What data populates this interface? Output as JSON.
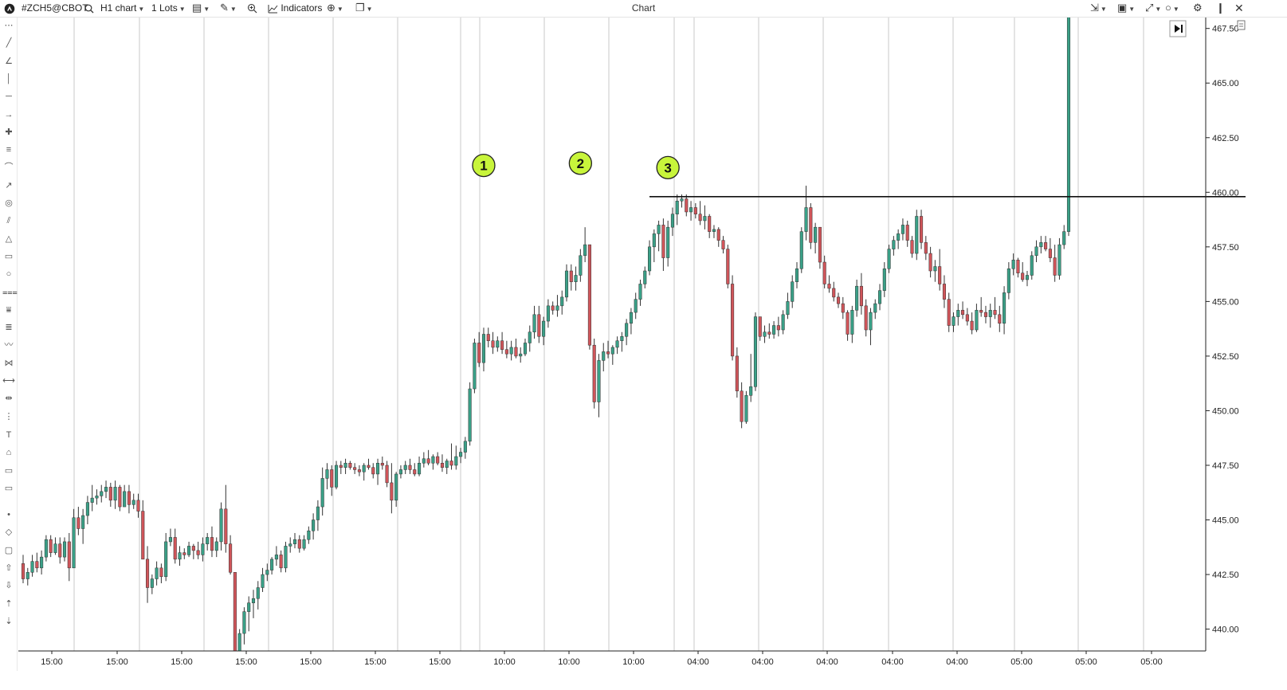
{
  "toolbar": {
    "logo_icon": "app-logo-icon",
    "symbol": "#ZCH5@CBOT",
    "timeframe": "H1 chart",
    "lots": "1 Lots",
    "indicators": "Indicators",
    "title": "Chart"
  },
  "left_tools": [
    "dots-icon",
    "trendline-icon",
    "angle-icon",
    "vertical-line-icon",
    "horizontal-line-icon",
    "ray-icon",
    "crosshair-icon",
    "parallel-lines-icon",
    "curve-icon",
    "arrow-line-icon",
    "spiral-icon",
    "channel-icon",
    "triangle-icon",
    "rectangle-icon",
    "circle-icon",
    "fib-levels-icon",
    "fib-extension-icon",
    "fib-fan-icon",
    "wave-icon",
    "pattern-icon",
    "measure-icon",
    "range-icon",
    "vertical-dots-icon",
    "text-icon",
    "tag-icon",
    "callout-icon",
    "note-icon",
    "dot-icon",
    "diamond-icon",
    "square-icon",
    "arrow-up-icon",
    "arrow-down-icon",
    "sort-up-icon",
    "sort-down-icon"
  ],
  "chart_data": {
    "type": "candlestick",
    "y_ticks": [
      "467.50",
      "465.00",
      "462.50",
      "460.00",
      "457.50",
      "455.00",
      "452.50",
      "450.00",
      "447.50",
      "445.00",
      "442.50",
      "440.00"
    ],
    "x_ticks": [
      "15:00",
      "15:00",
      "15:00",
      "15:00",
      "15:00",
      "15:00",
      "15:00",
      "10:00",
      "10:00",
      "10:00",
      "04:00",
      "04:00",
      "04:00",
      "04:00",
      "04:00",
      "05:00",
      "05:00",
      "05:00"
    ],
    "ylim": [
      439.0,
      468.0
    ],
    "resistance_level": 459.8,
    "colors": {
      "up": "#3aa087",
      "down": "#d0555a",
      "wick": "#333333",
      "label_bg": "#c8f53b"
    },
    "markers": [
      {
        "label": "1",
        "x_index": 100,
        "price": 460.5
      },
      {
        "label": "2",
        "x_index": 121,
        "price": 460.6
      },
      {
        "label": "3",
        "x_index": 140,
        "price": 460.4
      }
    ],
    "ohlc": [
      [
        443.0,
        443.4,
        442.1,
        442.3
      ],
      [
        442.3,
        442.8,
        442.0,
        442.6
      ],
      [
        442.6,
        443.4,
        442.4,
        443.1
      ],
      [
        443.1,
        443.5,
        442.6,
        442.8
      ],
      [
        442.8,
        443.6,
        442.5,
        443.3
      ],
      [
        443.3,
        444.3,
        443.1,
        444.1
      ],
      [
        444.1,
        444.3,
        443.3,
        443.5
      ],
      [
        443.5,
        444.2,
        443.4,
        443.9
      ],
      [
        443.9,
        444.2,
        443.0,
        443.3
      ],
      [
        443.3,
        444.2,
        443.1,
        444.0
      ],
      [
        444.0,
        444.4,
        442.2,
        442.8
      ],
      [
        442.8,
        445.5,
        442.8,
        445.1
      ],
      [
        445.1,
        445.6,
        444.3,
        444.6
      ],
      [
        444.6,
        445.5,
        443.9,
        445.2
      ],
      [
        445.2,
        446.1,
        444.8,
        445.8
      ],
      [
        445.8,
        446.6,
        445.4,
        446.0
      ],
      [
        446.0,
        446.4,
        445.7,
        446.1
      ],
      [
        446.1,
        446.6,
        445.8,
        446.3
      ],
      [
        446.3,
        446.8,
        446.0,
        446.5
      ],
      [
        446.5,
        446.7,
        445.6,
        445.9
      ],
      [
        445.9,
        446.8,
        445.5,
        446.5
      ],
      [
        446.5,
        446.6,
        445.4,
        445.6
      ],
      [
        445.6,
        446.6,
        445.6,
        446.3
      ],
      [
        446.3,
        446.6,
        445.3,
        445.7
      ],
      [
        445.7,
        446.2,
        445.5,
        445.9
      ],
      [
        445.9,
        446.2,
        445.1,
        445.4
      ],
      [
        445.4,
        445.9,
        443.2,
        443.2
      ],
      [
        443.2,
        443.8,
        441.2,
        441.9
      ],
      [
        441.9,
        442.5,
        441.6,
        442.3
      ],
      [
        442.3,
        443.1,
        442.0,
        442.8
      ],
      [
        442.8,
        443.0,
        442.1,
        442.4
      ],
      [
        442.4,
        444.4,
        442.2,
        444.0
      ],
      [
        444.0,
        444.6,
        443.8,
        444.2
      ],
      [
        444.2,
        444.6,
        443.0,
        443.2
      ],
      [
        443.2,
        443.8,
        442.9,
        443.5
      ],
      [
        443.5,
        443.7,
        443.2,
        443.4
      ],
      [
        443.4,
        444.0,
        443.3,
        443.8
      ],
      [
        443.8,
        443.9,
        443.2,
        443.6
      ],
      [
        443.6,
        444.0,
        443.2,
        443.4
      ],
      [
        443.4,
        444.2,
        443.1,
        443.9
      ],
      [
        443.9,
        444.4,
        443.6,
        444.2
      ],
      [
        444.2,
        444.7,
        443.3,
        443.6
      ],
      [
        443.6,
        444.2,
        443.3,
        444.0
      ],
      [
        444.0,
        445.8,
        443.6,
        445.5
      ],
      [
        445.5,
        446.6,
        443.5,
        443.9
      ],
      [
        443.9,
        444.3,
        442.5,
        442.6
      ],
      [
        442.6,
        442.6,
        438.5,
        438.9
      ],
      [
        437.8,
        440.0,
        437.6,
        439.8
      ],
      [
        439.8,
        441.0,
        439.3,
        440.8
      ],
      [
        440.8,
        441.5,
        439.9,
        441.2
      ],
      [
        441.2,
        441.8,
        440.5,
        441.4
      ],
      [
        441.4,
        442.2,
        440.9,
        441.9
      ],
      [
        441.9,
        442.8,
        441.7,
        442.5
      ],
      [
        442.5,
        443.0,
        442.2,
        442.7
      ],
      [
        442.7,
        443.3,
        442.5,
        443.2
      ],
      [
        443.2,
        443.8,
        442.9,
        443.4
      ],
      [
        443.4,
        443.6,
        442.6,
        442.8
      ],
      [
        442.8,
        444.0,
        442.6,
        443.8
      ],
      [
        443.8,
        444.2,
        443.5,
        443.9
      ],
      [
        443.9,
        444.4,
        443.7,
        444.1
      ],
      [
        444.1,
        444.3,
        443.5,
        443.7
      ],
      [
        443.7,
        444.3,
        443.6,
        444.1
      ],
      [
        444.1,
        444.7,
        443.9,
        444.5
      ],
      [
        444.5,
        445.3,
        444.1,
        445.0
      ],
      [
        445.0,
        445.9,
        444.5,
        445.6
      ],
      [
        445.6,
        447.4,
        445.2,
        446.9
      ],
      [
        446.9,
        447.6,
        446.4,
        447.3
      ],
      [
        447.3,
        447.5,
        446.1,
        446.5
      ],
      [
        446.5,
        447.7,
        446.4,
        447.5
      ],
      [
        447.5,
        447.7,
        447.1,
        447.4
      ],
      [
        447.4,
        447.8,
        447.1,
        447.6
      ],
      [
        447.6,
        447.7,
        447.3,
        447.4
      ],
      [
        447.4,
        447.6,
        447.1,
        447.3
      ],
      [
        447.3,
        447.5,
        447.0,
        447.2
      ],
      [
        447.2,
        447.6,
        446.8,
        447.5
      ],
      [
        447.5,
        447.8,
        447.3,
        447.4
      ],
      [
        447.4,
        447.6,
        446.9,
        447.1
      ],
      [
        447.1,
        447.8,
        446.6,
        447.6
      ],
      [
        447.6,
        447.9,
        447.3,
        447.5
      ],
      [
        447.5,
        447.7,
        446.5,
        446.7
      ],
      [
        446.7,
        447.6,
        445.3,
        445.9
      ],
      [
        445.9,
        447.2,
        445.6,
        447.1
      ],
      [
        447.1,
        447.5,
        446.9,
        447.3
      ],
      [
        447.3,
        447.7,
        447.1,
        447.5
      ],
      [
        447.5,
        447.8,
        447.1,
        447.3
      ],
      [
        447.3,
        447.6,
        447.0,
        447.1
      ],
      [
        447.1,
        447.9,
        447.0,
        447.6
      ],
      [
        447.6,
        448.1,
        447.4,
        447.8
      ],
      [
        447.8,
        448.2,
        447.5,
        447.6
      ],
      [
        447.6,
        448.0,
        447.3,
        447.9
      ],
      [
        447.9,
        448.1,
        447.5,
        447.6
      ],
      [
        447.6,
        448.0,
        447.2,
        447.4
      ],
      [
        447.4,
        447.8,
        447.1,
        447.7
      ],
      [
        447.7,
        448.5,
        447.3,
        447.5
      ],
      [
        447.5,
        448.4,
        447.3,
        447.9
      ],
      [
        447.9,
        448.3,
        447.6,
        448.1
      ],
      [
        448.1,
        448.8,
        447.8,
        448.6
      ],
      [
        448.6,
        451.3,
        448.4,
        451.0
      ],
      [
        451.0,
        453.3,
        450.8,
        453.1
      ],
      [
        453.1,
        453.6,
        452.0,
        452.2
      ],
      [
        452.2,
        453.8,
        451.8,
        453.5
      ],
      [
        453.5,
        453.8,
        452.9,
        453.2
      ],
      [
        453.2,
        453.6,
        452.6,
        452.9
      ],
      [
        452.9,
        453.4,
        452.7,
        453.2
      ],
      [
        453.2,
        453.6,
        452.6,
        452.8
      ],
      [
        452.8,
        453.2,
        452.4,
        452.6
      ],
      [
        452.6,
        453.2,
        452.3,
        452.9
      ],
      [
        452.9,
        453.3,
        452.4,
        452.5
      ],
      [
        452.5,
        452.9,
        452.2,
        452.6
      ],
      [
        452.6,
        453.3,
        452.5,
        453.1
      ],
      [
        453.1,
        453.9,
        452.7,
        453.6
      ],
      [
        453.6,
        454.8,
        453.3,
        454.4
      ],
      [
        454.4,
        454.8,
        453.1,
        453.4
      ],
      [
        453.4,
        454.3,
        453.0,
        454.1
      ],
      [
        454.1,
        455.1,
        453.8,
        454.8
      ],
      [
        454.8,
        455.0,
        454.4,
        454.6
      ],
      [
        454.6,
        455.3,
        454.3,
        454.8
      ],
      [
        454.8,
        455.5,
        454.4,
        455.2
      ],
      [
        455.2,
        456.7,
        455.0,
        456.4
      ],
      [
        456.4,
        456.7,
        455.5,
        455.9
      ],
      [
        455.9,
        456.6,
        455.5,
        456.2
      ],
      [
        456.2,
        457.4,
        455.9,
        457.1
      ],
      [
        457.1,
        458.4,
        456.8,
        457.6
      ],
      [
        457.6,
        457.6,
        452.8,
        453.0
      ],
      [
        453.0,
        453.3,
        450.1,
        450.4
      ],
      [
        450.4,
        452.6,
        449.7,
        452.3
      ],
      [
        452.3,
        453.1,
        451.8,
        452.7
      ],
      [
        452.7,
        453.2,
        452.4,
        452.6
      ],
      [
        452.6,
        453.0,
        452.1,
        452.9
      ],
      [
        452.9,
        453.4,
        452.6,
        453.2
      ],
      [
        453.2,
        453.6,
        452.7,
        453.4
      ],
      [
        453.4,
        454.2,
        453.0,
        454.0
      ],
      [
        454.0,
        454.7,
        453.5,
        454.5
      ],
      [
        454.5,
        455.4,
        454.2,
        455.1
      ],
      [
        455.1,
        456.0,
        454.8,
        455.8
      ],
      [
        455.8,
        456.6,
        455.6,
        456.4
      ],
      [
        456.4,
        457.8,
        456.2,
        457.5
      ],
      [
        457.5,
        458.3,
        456.8,
        458.1
      ],
      [
        458.1,
        458.7,
        457.3,
        458.5
      ],
      [
        458.5,
        458.8,
        456.4,
        457.0
      ],
      [
        457.0,
        458.7,
        456.6,
        458.4
      ],
      [
        458.4,
        459.3,
        458.0,
        459.0
      ],
      [
        459.0,
        459.9,
        458.5,
        459.6
      ],
      [
        459.6,
        459.9,
        459.3,
        459.7
      ],
      [
        459.7,
        459.9,
        458.9,
        459.1
      ],
      [
        459.1,
        459.6,
        458.7,
        459.3
      ],
      [
        459.3,
        459.5,
        458.8,
        459.0
      ],
      [
        459.0,
        459.6,
        458.5,
        458.7
      ],
      [
        458.7,
        459.4,
        458.3,
        458.9
      ],
      [
        458.9,
        459.0,
        457.9,
        458.2
      ],
      [
        458.2,
        458.5,
        457.9,
        458.3
      ],
      [
        458.3,
        458.4,
        457.5,
        457.8
      ],
      [
        457.8,
        458.0,
        457.2,
        457.4
      ],
      [
        457.4,
        457.6,
        455.6,
        455.8
      ],
      [
        455.8,
        456.2,
        452.3,
        452.5
      ],
      [
        452.5,
        452.9,
        450.6,
        450.9
      ],
      [
        450.9,
        451.3,
        449.2,
        449.5
      ],
      [
        449.5,
        450.9,
        449.4,
        450.7
      ],
      [
        450.7,
        452.6,
        450.4,
        451.1
      ],
      [
        451.1,
        454.5,
        450.9,
        454.3
      ],
      [
        454.3,
        454.3,
        453.2,
        453.4
      ],
      [
        453.4,
        453.9,
        453.1,
        453.6
      ],
      [
        453.6,
        454.0,
        453.3,
        453.5
      ],
      [
        453.5,
        454.1,
        453.3,
        453.9
      ],
      [
        453.9,
        454.3,
        453.4,
        453.7
      ],
      [
        453.7,
        454.6,
        453.5,
        454.4
      ],
      [
        454.4,
        455.4,
        454.2,
        455.0
      ],
      [
        455.0,
        456.2,
        454.7,
        455.9
      ],
      [
        455.9,
        456.8,
        455.6,
        456.5
      ],
      [
        456.5,
        458.4,
        456.3,
        458.2
      ],
      [
        458.2,
        460.3,
        457.8,
        459.3
      ],
      [
        459.3,
        459.5,
        457.4,
        457.7
      ],
      [
        457.7,
        458.6,
        457.2,
        458.4
      ],
      [
        458.4,
        458.4,
        456.5,
        456.8
      ],
      [
        456.8,
        457.1,
        455.6,
        455.8
      ],
      [
        455.8,
        456.2,
        455.4,
        455.6
      ],
      [
        455.6,
        455.9,
        455.0,
        455.2
      ],
      [
        455.2,
        455.4,
        454.7,
        454.9
      ],
      [
        454.9,
        455.2,
        454.2,
        454.5
      ],
      [
        454.5,
        454.6,
        453.2,
        453.5
      ],
      [
        453.5,
        454.8,
        453.1,
        454.6
      ],
      [
        454.6,
        456.0,
        454.3,
        455.7
      ],
      [
        455.7,
        456.3,
        454.4,
        454.8
      ],
      [
        454.8,
        455.1,
        453.4,
        453.7
      ],
      [
        453.7,
        454.7,
        453.0,
        454.5
      ],
      [
        454.5,
        455.1,
        454.2,
        454.9
      ],
      [
        454.9,
        455.8,
        454.6,
        455.5
      ],
      [
        455.5,
        456.8,
        455.2,
        456.5
      ],
      [
        456.5,
        457.6,
        456.3,
        457.4
      ],
      [
        457.4,
        458.0,
        457.1,
        457.8
      ],
      [
        457.8,
        458.3,
        457.4,
        458.1
      ],
      [
        458.1,
        458.8,
        457.8,
        458.5
      ],
      [
        458.5,
        458.7,
        457.5,
        457.8
      ],
      [
        457.8,
        458.0,
        457.0,
        457.2
      ],
      [
        457.2,
        459.2,
        456.9,
        458.9
      ],
      [
        458.9,
        459.2,
        457.4,
        457.7
      ],
      [
        457.7,
        458.0,
        456.9,
        457.2
      ],
      [
        457.2,
        457.5,
        456.1,
        456.4
      ],
      [
        456.4,
        456.9,
        455.9,
        456.6
      ],
      [
        456.6,
        457.4,
        455.5,
        455.8
      ],
      [
        455.8,
        456.2,
        454.7,
        455.1
      ],
      [
        455.1,
        455.4,
        453.6,
        453.9
      ],
      [
        453.9,
        454.5,
        453.6,
        454.3
      ],
      [
        454.3,
        454.9,
        453.9,
        454.6
      ],
      [
        454.6,
        455.0,
        454.2,
        454.4
      ],
      [
        454.4,
        454.7,
        453.9,
        454.1
      ],
      [
        454.1,
        454.5,
        453.5,
        453.7
      ],
      [
        453.7,
        454.9,
        453.6,
        454.6
      ],
      [
        454.6,
        455.2,
        454.3,
        454.5
      ],
      [
        454.5,
        454.8,
        454.0,
        454.3
      ],
      [
        454.3,
        454.9,
        453.8,
        454.6
      ],
      [
        454.6,
        455.2,
        454.2,
        454.4
      ],
      [
        454.4,
        454.8,
        453.6,
        454.0
      ],
      [
        454.0,
        455.7,
        453.5,
        455.4
      ],
      [
        455.4,
        456.8,
        455.1,
        456.5
      ],
      [
        456.5,
        457.2,
        456.2,
        456.9
      ],
      [
        456.9,
        457.0,
        456.1,
        456.3
      ],
      [
        456.3,
        456.8,
        455.9,
        456.0
      ],
      [
        456.0,
        456.4,
        455.7,
        456.2
      ],
      [
        456.2,
        457.3,
        456.0,
        457.1
      ],
      [
        457.1,
        457.8,
        456.8,
        457.5
      ],
      [
        457.5,
        458.0,
        457.2,
        457.7
      ],
      [
        457.7,
        458.0,
        457.3,
        457.4
      ],
      [
        457.4,
        457.9,
        456.8,
        457.0
      ],
      [
        457.0,
        457.6,
        455.9,
        456.2
      ],
      [
        456.2,
        457.9,
        456.0,
        457.6
      ],
      [
        457.6,
        458.5,
        457.4,
        458.2
      ],
      [
        458.2,
        470.5,
        458.0,
        469.0
      ]
    ]
  }
}
